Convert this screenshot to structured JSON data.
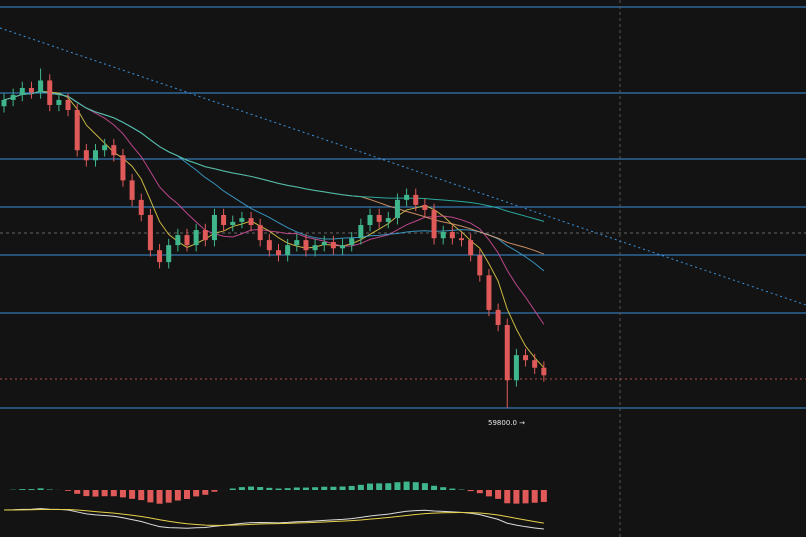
{
  "chart_data": {
    "type": "candlestick",
    "annotation": "59800.0 →",
    "ylim": [
      59290,
      66290
    ],
    "open": [
      64600,
      64700,
      64780,
      64890,
      64820,
      65010,
      64620,
      64700,
      64540,
      63900,
      63740,
      63900,
      63980,
      63820,
      63420,
      63110,
      62870,
      62310,
      62120,
      62390,
      62550,
      62390,
      62630,
      62470,
      62870,
      62710,
      62760,
      62820,
      62710,
      62470,
      62310,
      62230,
      62390,
      62470,
      62310,
      62390,
      62440,
      62340,
      62390,
      62500,
      62710,
      62870,
      62760,
      62820,
      63110,
      63190,
      63030,
      62950,
      62500,
      62600,
      62500,
      62470,
      62230,
      61910,
      61360,
      61120,
      60240,
      60640,
      60560,
      60440
    ],
    "high": [
      64800,
      64880,
      64990,
      64990,
      65200,
      65110,
      64800,
      64800,
      64640,
      64000,
      64000,
      64080,
      64080,
      63920,
      63520,
      63210,
      62970,
      62410,
      62490,
      62650,
      62650,
      62730,
      62730,
      62970,
      62970,
      62860,
      62920,
      62920,
      62810,
      62570,
      62410,
      62490,
      62570,
      62570,
      62490,
      62540,
      62540,
      62490,
      62600,
      62810,
      62970,
      62970,
      62920,
      63210,
      63290,
      63290,
      63130,
      63050,
      62700,
      62700,
      62600,
      62570,
      62330,
      62010,
      61460,
      61220,
      60740,
      60740,
      60660,
      60540
    ],
    "low": [
      64500,
      64600,
      64680,
      64720,
      64720,
      64520,
      64520,
      64440,
      63800,
      63640,
      63640,
      63800,
      63720,
      63320,
      63010,
      62770,
      62210,
      62020,
      62020,
      62290,
      62290,
      62290,
      62370,
      62370,
      62610,
      62610,
      62660,
      62610,
      62370,
      62210,
      62130,
      62130,
      62290,
      62210,
      62210,
      62290,
      62240,
      62240,
      62290,
      62400,
      62610,
      62660,
      62660,
      62720,
      63010,
      62930,
      62850,
      62400,
      62400,
      62400,
      62370,
      62130,
      61810,
      61260,
      61020,
      59800,
      60140,
      60460,
      60340,
      60220
    ],
    "close": [
      64700,
      64780,
      64890,
      64820,
      65010,
      64620,
      64700,
      64540,
      63900,
      63740,
      63900,
      63980,
      63820,
      63420,
      63110,
      62870,
      62310,
      62120,
      62390,
      62550,
      62390,
      62630,
      62470,
      62870,
      62710,
      62760,
      62820,
      62710,
      62470,
      62310,
      62230,
      62390,
      62470,
      62310,
      62390,
      62440,
      62340,
      62390,
      62500,
      62710,
      62870,
      62760,
      62820,
      63110,
      63190,
      63030,
      62950,
      62500,
      62600,
      62500,
      62470,
      62230,
      61910,
      61360,
      61120,
      60240,
      60640,
      60560,
      60440,
      60320
    ]
  }
}
